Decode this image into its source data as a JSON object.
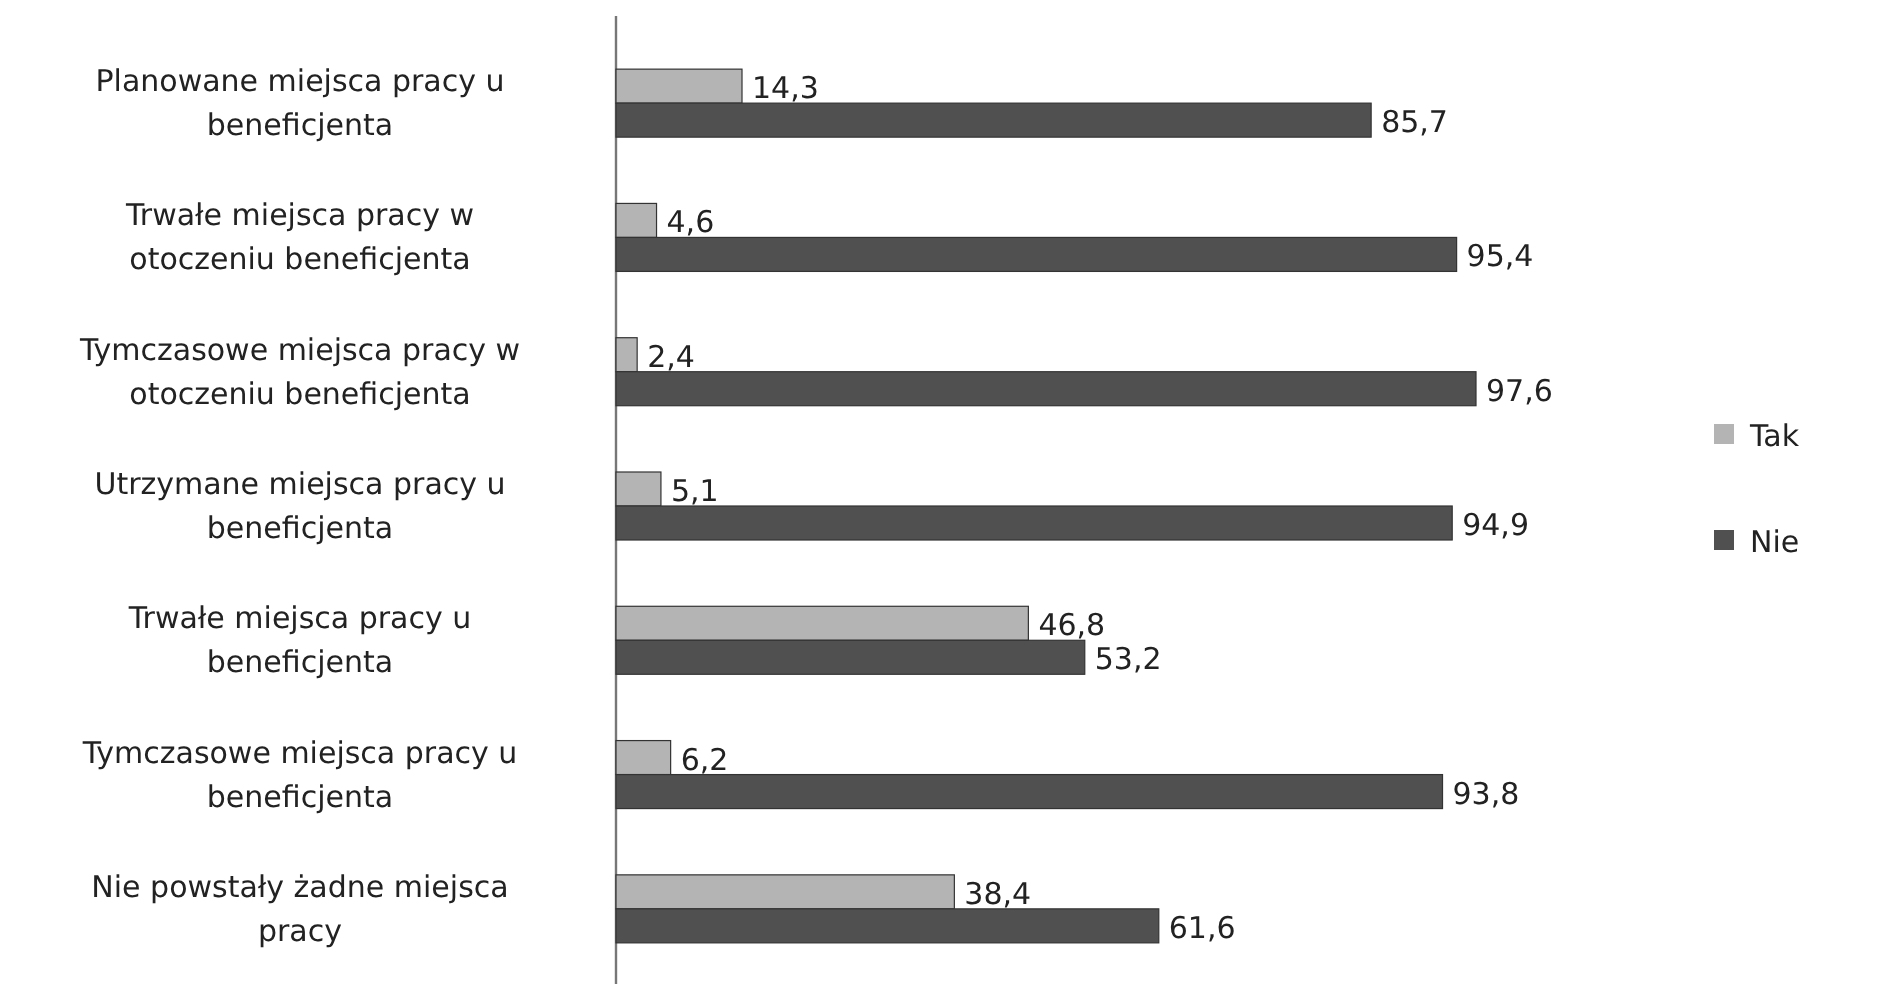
{
  "chart_data": {
    "type": "bar",
    "orientation": "horizontal",
    "categories": [
      "Planowane miejsca pracy u beneficjenta",
      "Trwałe miejsca pracy w otoczeniu beneficjenta",
      "Tymczasowe miejsca pracy w otoczeniu beneficjenta",
      "Utrzymane miejsca pracy u beneficjenta",
      "Trwałe miejsca pracy u beneficjenta",
      "Tymczasowe miejsca pracy u beneficjenta",
      "Nie powstały żadne miejsca pracy"
    ],
    "series": [
      {
        "name": "Tak",
        "color": "#b4b4b4",
        "values": [
          14.3,
          4.6,
          2.4,
          5.1,
          46.8,
          6.2,
          38.4
        ],
        "value_labels": [
          "14,3",
          "4,6",
          "2,4",
          "5,1",
          "46,8",
          "6,2",
          "38,4"
        ]
      },
      {
        "name": "Nie",
        "color": "#505050",
        "values": [
          85.7,
          95.4,
          97.6,
          94.9,
          53.2,
          93.8,
          61.6
        ],
        "value_labels": [
          "85,7",
          "95,4",
          "97,6",
          "94,9",
          "53,2",
          "93,8",
          "61,6"
        ]
      }
    ],
    "legend": "right"
  }
}
